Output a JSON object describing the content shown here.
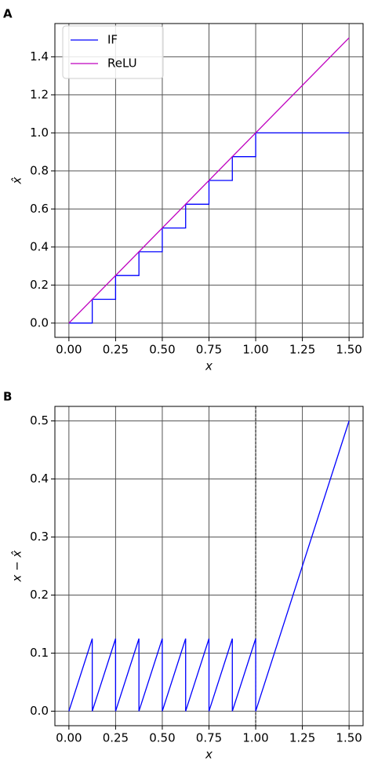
{
  "chart_data": [
    {
      "type": "line",
      "panel_label": "A",
      "xlabel": "x",
      "ylabel": "x̂",
      "series": [
        {
          "name": "IF",
          "color": "#0000ff",
          "x": [
            0,
            0.125,
            0.125,
            0.25,
            0.25,
            0.375,
            0.375,
            0.5,
            0.5,
            0.625,
            0.625,
            0.75,
            0.75,
            0.875,
            0.875,
            1,
            1,
            1.5
          ],
          "values": [
            0,
            0,
            0.125,
            0.125,
            0.25,
            0.25,
            0.375,
            0.375,
            0.5,
            0.5,
            0.625,
            0.625,
            0.75,
            0.75,
            0.875,
            0.875,
            1,
            1
          ]
        },
        {
          "name": "ReLU",
          "color": "#bf00bf",
          "x": [
            0,
            1.5
          ],
          "values": [
            0,
            1.5
          ]
        }
      ],
      "xlim": [
        -0.075,
        1.575
      ],
      "ylim": [
        -0.075,
        1.575
      ],
      "xticks": [
        {
          "value": 0,
          "label": "0.00"
        },
        {
          "value": 0.25,
          "label": "0.25"
        },
        {
          "value": 0.5,
          "label": "0.50"
        },
        {
          "value": 0.75,
          "label": "0.75"
        },
        {
          "value": 1,
          "label": "1.00"
        },
        {
          "value": 1.25,
          "label": "1.25"
        },
        {
          "value": 1.5,
          "label": "1.50"
        }
      ],
      "yticks": [
        {
          "value": 0,
          "label": "0.0"
        },
        {
          "value": 0.2,
          "label": "0.2"
        },
        {
          "value": 0.4,
          "label": "0.4"
        },
        {
          "value": 0.6,
          "label": "0.6"
        },
        {
          "value": 0.8,
          "label": "0.8"
        },
        {
          "value": 1,
          "label": "1.0"
        },
        {
          "value": 1.2,
          "label": "1.2"
        },
        {
          "value": 1.4,
          "label": "1.4"
        }
      ],
      "grid": true,
      "legend": "upper left"
    },
    {
      "type": "line",
      "panel_label": "B",
      "xlabel": "x",
      "ylabel": "x − x̂",
      "series": [
        {
          "color": "#0000ff",
          "x": [
            0,
            0.125,
            0.125,
            0.25,
            0.25,
            0.375,
            0.375,
            0.5,
            0.5,
            0.625,
            0.625,
            0.75,
            0.75,
            0.875,
            0.875,
            1,
            1,
            1.5
          ],
          "values": [
            0,
            0.125,
            0,
            0.125,
            0,
            0.125,
            0,
            0.125,
            0,
            0.125,
            0,
            0.125,
            0,
            0.125,
            0,
            0.125,
            0,
            0.5
          ]
        }
      ],
      "vlines": [
        1
      ],
      "xlim": [
        -0.075,
        1.575
      ],
      "ylim": [
        -0.025,
        0.525
      ],
      "xticks": [
        {
          "value": 0,
          "label": "0.00"
        },
        {
          "value": 0.25,
          "label": "0.25"
        },
        {
          "value": 0.5,
          "label": "0.50"
        },
        {
          "value": 0.75,
          "label": "0.75"
        },
        {
          "value": 1,
          "label": "1.00"
        },
        {
          "value": 1.25,
          "label": "1.25"
        },
        {
          "value": 1.5,
          "label": "1.50"
        }
      ],
      "yticks": [
        {
          "value": 0,
          "label": "0.0"
        },
        {
          "value": 0.1,
          "label": "0.1"
        },
        {
          "value": 0.2,
          "label": "0.2"
        },
        {
          "value": 0.3,
          "label": "0.3"
        },
        {
          "value": 0.4,
          "label": "0.4"
        },
        {
          "value": 0.5,
          "label": "0.5"
        }
      ],
      "grid": true
    }
  ]
}
